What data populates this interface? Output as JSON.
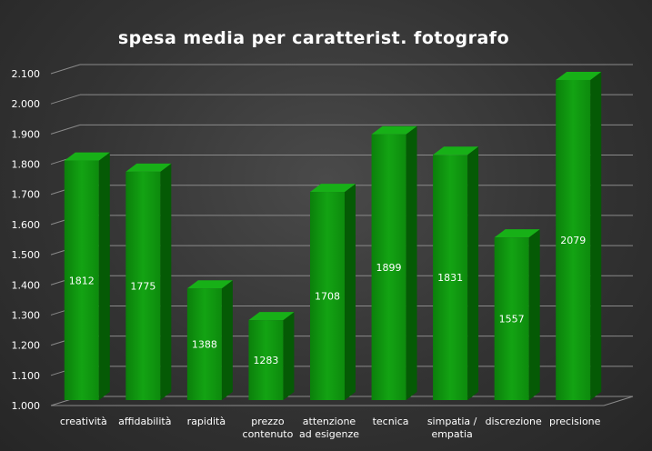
{
  "chart_data": {
    "type": "bar",
    "title": "spesa media per caratterist. fotografo",
    "categories": [
      [
        "creatività"
      ],
      [
        "affidabilità"
      ],
      [
        "rapidità"
      ],
      [
        "prezzo",
        "contenuto"
      ],
      [
        "attenzione",
        "ad esigenze"
      ],
      [
        "tecnica"
      ],
      [
        "simpatia /",
        "empatia"
      ],
      [
        "discrezione"
      ],
      [
        "precisione"
      ]
    ],
    "values": [
      1812,
      1775,
      1388,
      1283,
      1708,
      1899,
      1831,
      1557,
      2079
    ],
    "data_labels": [
      "1812",
      "1775",
      "1388",
      "1283",
      "1708",
      "1899",
      "1831",
      "1557",
      "2079"
    ],
    "ylim": [
      1000,
      2100
    ],
    "y_ticks": [
      1000,
      1100,
      1200,
      1300,
      1400,
      1500,
      1600,
      1700,
      1800,
      1900,
      2000,
      2100
    ],
    "y_tick_labels": [
      "1.000",
      "1.100",
      "1.200",
      "1.300",
      "1.400",
      "1.500",
      "1.600",
      "1.700",
      "1.800",
      "1.900",
      "2.000",
      "2.100"
    ],
    "grid": true,
    "legend": "none",
    "colors": {
      "bar_front_light": "#119a11",
      "bar_front_dark": "#0a7a0a",
      "bar_side": "#055a05",
      "bar_top": "#17b017",
      "grid": "#8a8a8a",
      "text": "#ffffff"
    }
  }
}
